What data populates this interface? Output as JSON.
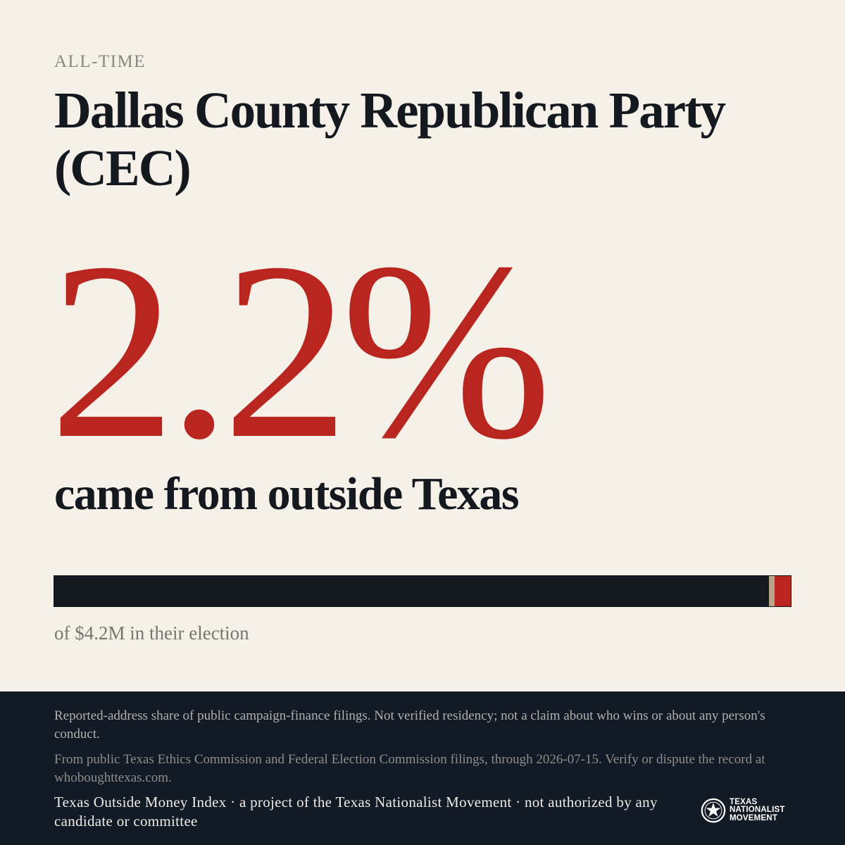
{
  "header": {
    "eyebrow": "ALL-TIME",
    "title": "Dallas County Republican Party (CEC)"
  },
  "stat": {
    "percent_label": "2.2%",
    "caption": "came from outside Texas"
  },
  "bar": {
    "outside_share": 0.022,
    "caption": "of $4.2M in their election",
    "colors": {
      "base": "#14181f",
      "tick": "#b7a48b",
      "outside": "#b8261f"
    }
  },
  "footer": {
    "disclaimer": "Reported-address share of public campaign-finance filings. Not verified residency; not a claim about who wins or about any person's conduct.",
    "source": "From public Texas Ethics Commission and Federal Election Commission filings, through 2026-07-15. Verify or dispute the record at whoboughttexas.com.",
    "project": "Texas Outside Money Index · a project of the Texas Nationalist Movement · not authorized by any candidate or committee"
  },
  "logo": {
    "icon": "star-badge-icon",
    "line1": "TEXAS",
    "line2": "NATIONALIST",
    "line3": "MOVEMENT"
  },
  "colors": {
    "accent": "#b8261f",
    "background": "#f5f0e8",
    "ink": "#14181f",
    "footer_bg": "#121a26"
  }
}
